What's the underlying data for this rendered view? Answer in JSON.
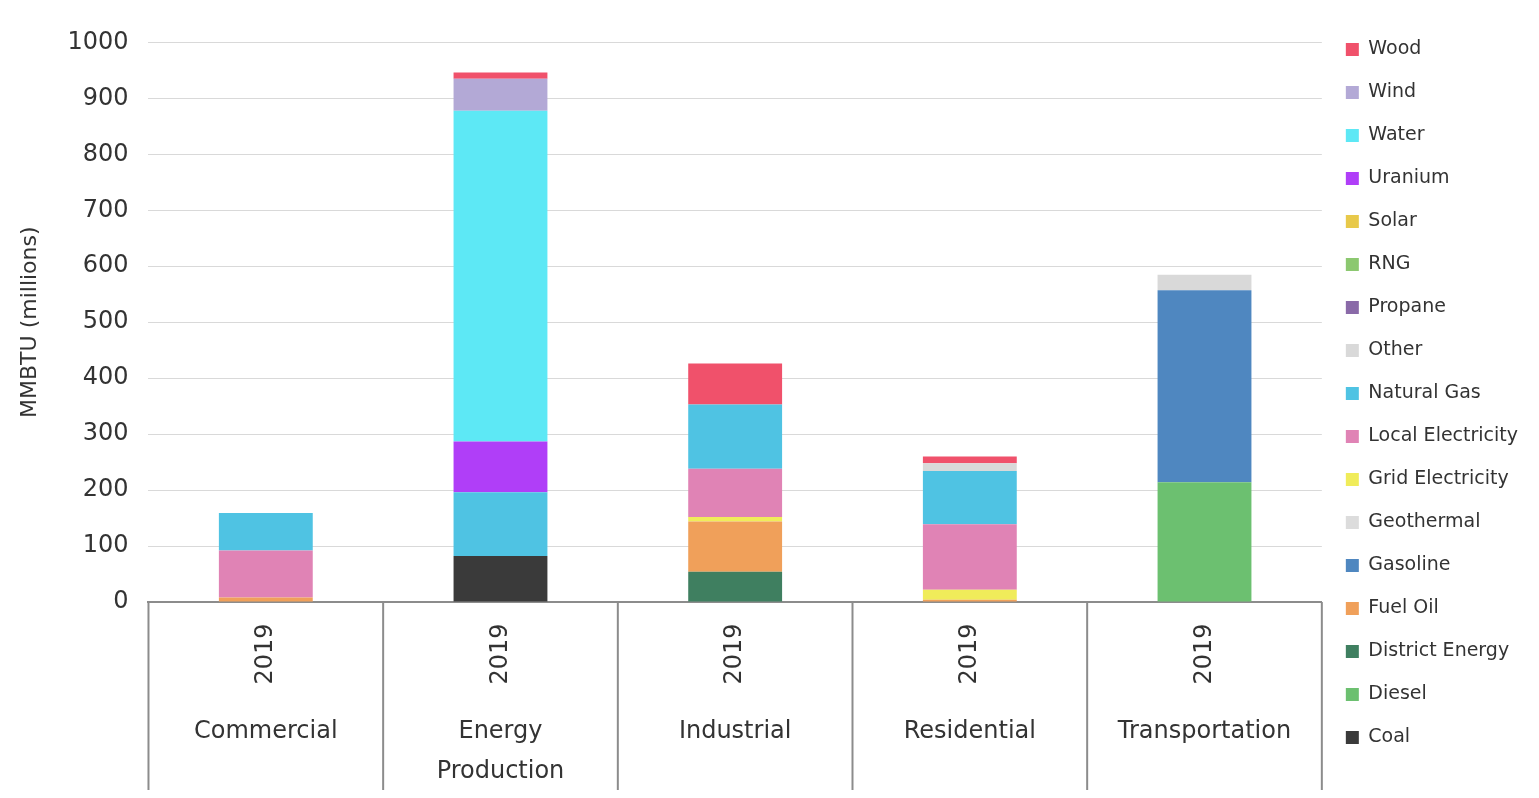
{
  "chart_data": {
    "type": "bar",
    "stacked": true,
    "ylabel": "MMBTU (millions)",
    "categories": [
      "Commercial",
      "Energy Production",
      "Industrial",
      "Residential",
      "Transportation"
    ],
    "annotations": [
      "2019",
      "2019",
      "2019",
      "2019",
      "2019"
    ],
    "ylim": [
      0,
      1000
    ],
    "yticks": [
      0,
      100,
      200,
      300,
      400,
      500,
      600,
      700,
      800,
      900,
      1000
    ],
    "grid": "y",
    "legend": "right",
    "series": [
      {
        "name": "Coal",
        "color": "#3a3a3a",
        "values": [
          0,
          82,
          0,
          0,
          0
        ]
      },
      {
        "name": "Diesel",
        "color": "#6cc070",
        "values": [
          0,
          0,
          0,
          0,
          214
        ]
      },
      {
        "name": "District Energy",
        "color": "#3f7f60",
        "values": [
          0,
          0,
          54,
          0,
          0
        ]
      },
      {
        "name": "Fuel Oil",
        "color": "#f0a05a",
        "values": [
          8,
          0,
          90,
          4,
          0
        ]
      },
      {
        "name": "Gasoline",
        "color": "#4f87c0",
        "values": [
          0,
          0,
          0,
          0,
          343
        ]
      },
      {
        "name": "Geothermal",
        "color": "#dcdcdc",
        "values": [
          0,
          0,
          0,
          0,
          0
        ]
      },
      {
        "name": "Grid Electricity",
        "color": "#f0ec5a",
        "values": [
          0,
          0,
          8,
          18,
          0
        ]
      },
      {
        "name": "Local Electricity",
        "color": "#e083b5",
        "values": [
          84,
          0,
          86,
          117,
          0
        ]
      },
      {
        "name": "Natural Gas",
        "color": "#4fc3e3",
        "values": [
          67,
          114,
          115,
          95,
          0
        ]
      },
      {
        "name": "Other",
        "color": "#d9d9d9",
        "values": [
          0,
          0,
          0,
          14,
          28
        ]
      },
      {
        "name": "Propane",
        "color": "#8a6aa8",
        "values": [
          0,
          0,
          0,
          0,
          0
        ]
      },
      {
        "name": "RNG",
        "color": "#8cc870",
        "values": [
          0,
          0,
          0,
          0,
          0
        ]
      },
      {
        "name": "Solar",
        "color": "#e8c94a",
        "values": [
          0,
          0,
          0,
          0,
          0
        ]
      },
      {
        "name": "Uranium",
        "color": "#b03ef8",
        "values": [
          0,
          91,
          0,
          0,
          0
        ]
      },
      {
        "name": "Water",
        "color": "#5de8f5",
        "values": [
          0,
          591,
          0,
          0,
          0
        ]
      },
      {
        "name": "Wind",
        "color": "#b3a9d6",
        "values": [
          0,
          57,
          0,
          0,
          0
        ]
      },
      {
        "name": "Wood",
        "color": "#f0516b",
        "values": [
          0,
          11,
          73,
          12,
          0
        ]
      }
    ]
  }
}
